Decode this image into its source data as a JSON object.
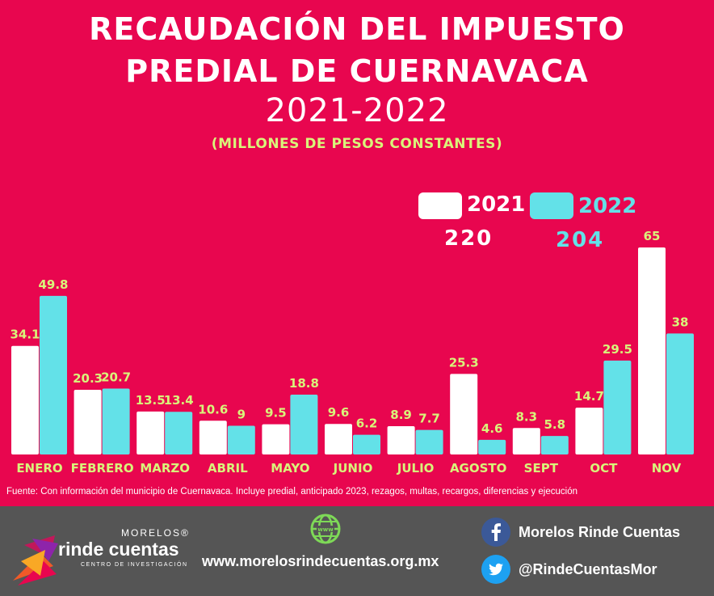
{
  "title": {
    "line1": "RECAUDACIÓN DEL IMPUESTO",
    "line2": "PREDIAL DE CUERNAVACA",
    "line3": "2021-2022"
  },
  "subtitle": "(MILLONES DE PESOS CONSTANTES)",
  "legend": {
    "items": [
      {
        "label": "2021",
        "total": "220",
        "color": "#ffffff"
      },
      {
        "label": "2022",
        "total": "204",
        "color": "#63e1e8"
      }
    ]
  },
  "chart_data": {
    "type": "bar",
    "categories": [
      "ENERO",
      "FEBRERO",
      "MARZO",
      "ABRIL",
      "MAYO",
      "JUNIO",
      "JULIO",
      "AGOSTO",
      "SEPT",
      "OCT",
      "NOV"
    ],
    "series": [
      {
        "name": "2021",
        "values": [
          34.1,
          20.3,
          13.5,
          10.6,
          9.5,
          9.6,
          8.9,
          25.3,
          8.3,
          14.7,
          65
        ],
        "color": "#ffffff"
      },
      {
        "name": "2022",
        "values": [
          49.8,
          20.7,
          13.4,
          9,
          18.8,
          6.2,
          7.7,
          4.6,
          5.8,
          29.5,
          38
        ],
        "color": "#63e1e8"
      }
    ],
    "ylim": [
      0,
      65
    ],
    "label_color": "#d9f57a",
    "grid": false,
    "legend_position": "top-right"
  },
  "source": "Fuente: Con información del municipio de Cuernavaca. Incluye predial, anticipado 2023, rezagos, multas, recargos, diferencias y ejecución",
  "footer": {
    "logo": {
      "top": "MORELOS®",
      "main": "rinde cuentas",
      "sub": "CENTRO DE INVESTIGACIÓN"
    },
    "website": "www.morelosrindecuentas.org.mx",
    "facebook": "Morelos Rinde Cuentas",
    "twitter": "@RindeCuentasMor",
    "globe_icon": "globe-icon",
    "facebook_icon": "facebook-icon",
    "twitter_icon": "twitter-icon"
  }
}
